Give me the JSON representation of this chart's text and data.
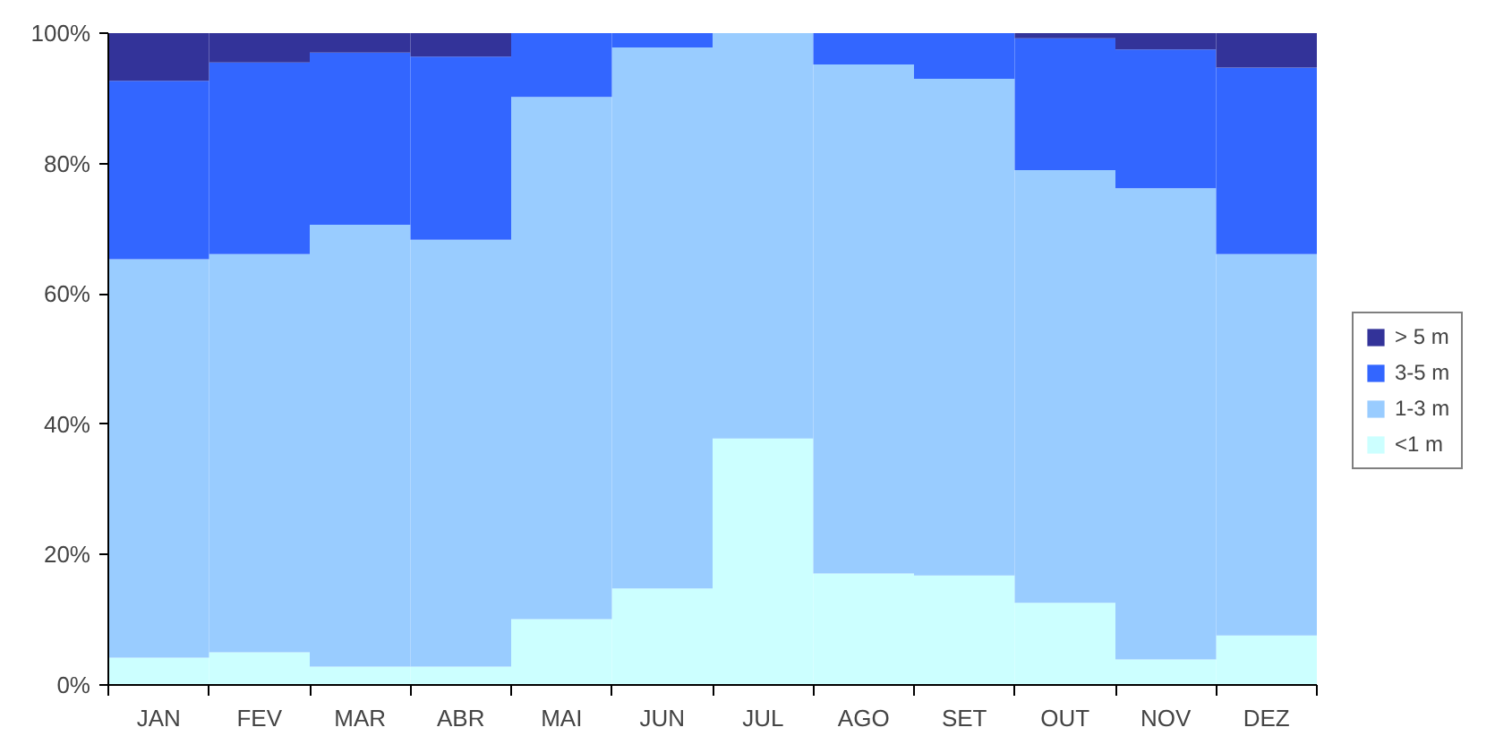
{
  "chart_data": {
    "type": "bar",
    "stacked": true,
    "categories": [
      "JAN",
      "FEV",
      "MAR",
      "ABR",
      "MAI",
      "JUN",
      "JUL",
      "AGO",
      "SET",
      "OUT",
      "NOV",
      "DEZ"
    ],
    "series": [
      {
        "name": "<1 m",
        "color": "#ccffff",
        "values": [
          4.2,
          5.0,
          2.8,
          2.8,
          10.1,
          14.8,
          37.8,
          17.1,
          16.8,
          12.6,
          3.9,
          7.6
        ]
      },
      {
        "name": "1-3 m",
        "color": "#99ccff",
        "values": [
          61.1,
          61.1,
          67.8,
          65.5,
          80.1,
          83.0,
          62.2,
          78.1,
          76.2,
          66.4,
          72.3,
          58.5
        ]
      },
      {
        "name": "3-5 m",
        "color": "#3366ff",
        "values": [
          27.4,
          29.4,
          26.4,
          28.1,
          9.8,
          2.2,
          0,
          4.8,
          7.0,
          20.2,
          21.3,
          28.6
        ]
      },
      {
        "name": "> 5 m",
        "color": "#333399",
        "values": [
          7.3,
          4.5,
          3.0,
          3.6,
          0,
          0,
          0,
          0,
          0,
          0.8,
          2.5,
          5.3
        ]
      }
    ],
    "ylim": [
      0,
      100
    ],
    "yticks": [
      {
        "value": 0,
        "label": "0%"
      },
      {
        "value": 20,
        "label": "20%"
      },
      {
        "value": 40,
        "label": "40%"
      },
      {
        "value": 60,
        "label": "60%"
      },
      {
        "value": 80,
        "label": "80%"
      },
      {
        "value": 100,
        "label": "100%"
      }
    ],
    "grid": false,
    "legend": "right"
  }
}
